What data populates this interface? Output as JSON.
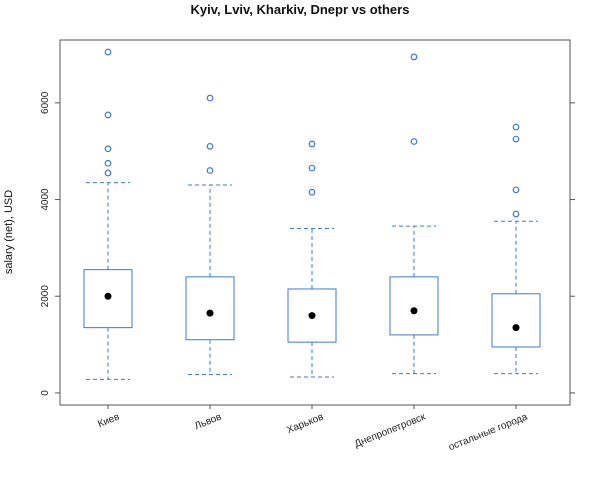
{
  "chart_data": {
    "type": "boxplot",
    "title": "Kyiv, Lviv, Kharkiv, Dnepr vs others",
    "xlabel": "",
    "ylabel": "salary (net), USD",
    "ylim": [
      -250,
      7300
    ],
    "yticks": [
      0,
      2000,
      4000,
      6000
    ],
    "grid": false,
    "colors": {
      "box": "#3a7bd5",
      "median": "#000000",
      "frame": "#555555"
    },
    "categories": [
      "Киев",
      "Львов",
      "Харьков",
      "Днепропетровск",
      "остальные города"
    ],
    "boxes": [
      {
        "name": "Киев",
        "whisker_low": 280,
        "q1": 1350,
        "median": 2000,
        "q3": 2550,
        "whisker_high": 4350,
        "outliers": [
          4550,
          4750,
          5050,
          5750,
          7050
        ]
      },
      {
        "name": "Львов",
        "whisker_low": 380,
        "q1": 1100,
        "median": 1650,
        "q3": 2400,
        "whisker_high": 4300,
        "outliers": [
          4600,
          5100,
          6100
        ]
      },
      {
        "name": "Харьков",
        "whisker_low": 330,
        "q1": 1050,
        "median": 1600,
        "q3": 2150,
        "whisker_high": 3400,
        "outliers": [
          4150,
          4650,
          5150
        ]
      },
      {
        "name": "Днепропетровск",
        "whisker_low": 400,
        "q1": 1200,
        "median": 1700,
        "q3": 2400,
        "whisker_high": 3450,
        "outliers": [
          5200,
          6950
        ]
      },
      {
        "name": "остальные города",
        "whisker_low": 400,
        "q1": 950,
        "median": 1350,
        "q3": 2050,
        "whisker_high": 3550,
        "outliers": [
          3700,
          4200,
          5250,
          5500
        ]
      }
    ]
  }
}
